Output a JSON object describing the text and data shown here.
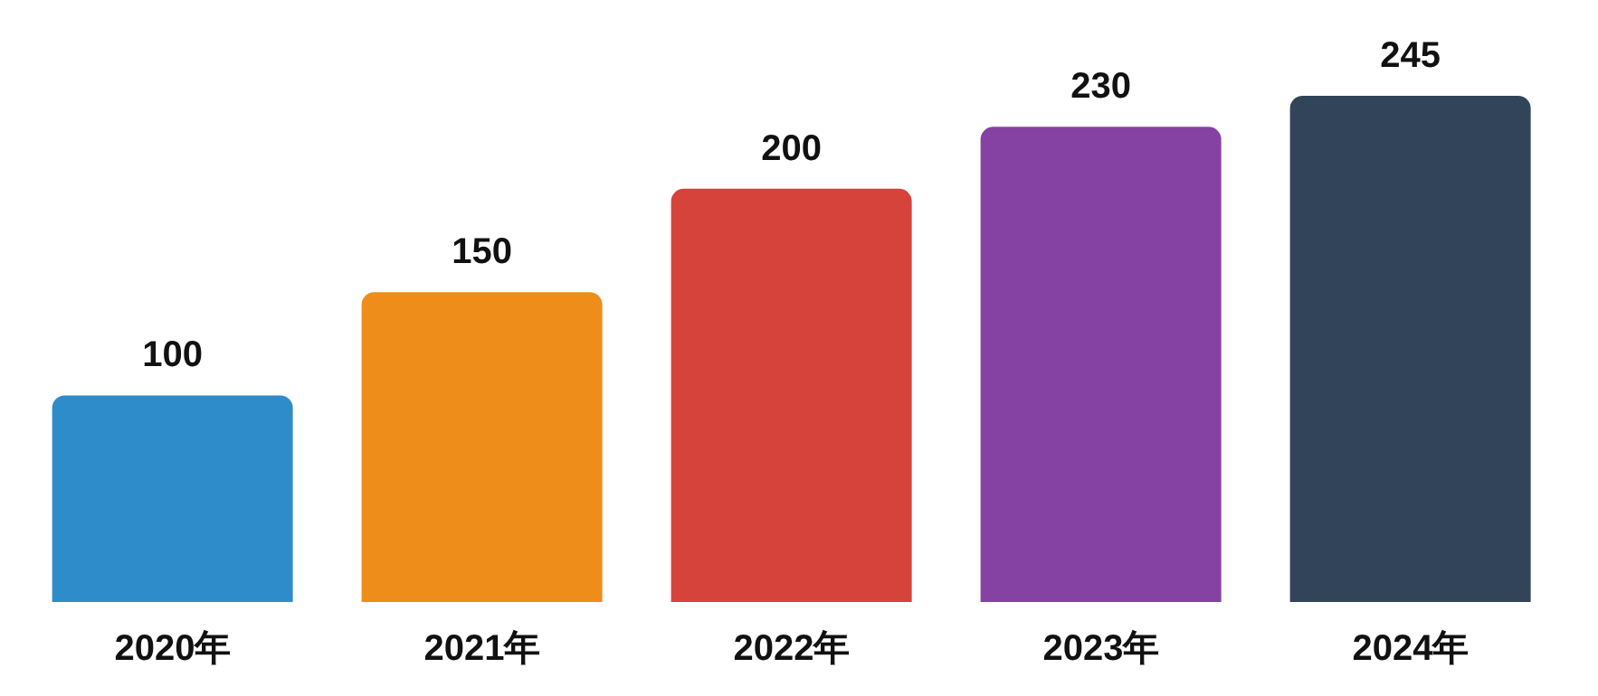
{
  "chart_data": {
    "type": "bar",
    "categories": [
      "2020年",
      "2021年",
      "2022年",
      "2023年",
      "2024年"
    ],
    "values": [
      100,
      150,
      200,
      230,
      245
    ],
    "colors": [
      "#2f8ccb",
      "#ee8d1a",
      "#d5433a",
      "#8642a2",
      "#314459"
    ],
    "data_labels": true,
    "grid": false,
    "legend": false
  }
}
